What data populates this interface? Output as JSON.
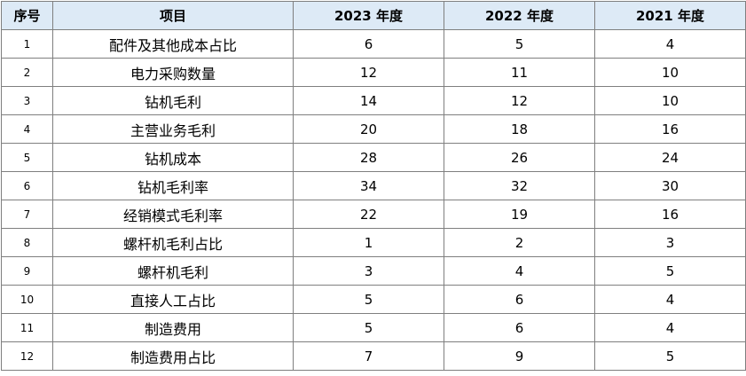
{
  "table": {
    "headers": [
      "序号",
      "项目",
      "2023 年度",
      "2022 年度",
      "2021 年度"
    ],
    "rows": [
      {
        "seq": "1",
        "item": "配件及其他成本占比",
        "y2023": "6",
        "y2022": "5",
        "y2021": "4"
      },
      {
        "seq": "2",
        "item": "电力采购数量",
        "y2023": "12",
        "y2022": "11",
        "y2021": "10"
      },
      {
        "seq": "3",
        "item": "钻机毛利",
        "y2023": "14",
        "y2022": "12",
        "y2021": "10"
      },
      {
        "seq": "4",
        "item": "主营业务毛利",
        "y2023": "20",
        "y2022": "18",
        "y2021": "16"
      },
      {
        "seq": "5",
        "item": "钻机成本",
        "y2023": "28",
        "y2022": "26",
        "y2021": "24"
      },
      {
        "seq": "6",
        "item": "钻机毛利率",
        "y2023": "34",
        "y2022": "32",
        "y2021": "30"
      },
      {
        "seq": "7",
        "item": "经销模式毛利率",
        "y2023": "22",
        "y2022": "19",
        "y2021": "16"
      },
      {
        "seq": "8",
        "item": "螺杆机毛利占比",
        "y2023": "1",
        "y2022": "2",
        "y2021": "3"
      },
      {
        "seq": "9",
        "item": "螺杆机毛利",
        "y2023": "3",
        "y2022": "4",
        "y2021": "5"
      },
      {
        "seq": "10",
        "item": "直接人工占比",
        "y2023": "5",
        "y2022": "6",
        "y2021": "4"
      },
      {
        "seq": "11",
        "item": "制造费用",
        "y2023": "5",
        "y2022": "6",
        "y2021": "4"
      },
      {
        "seq": "12",
        "item": "制造费用占比",
        "y2023": "7",
        "y2022": "9",
        "y2021": "5"
      }
    ]
  }
}
